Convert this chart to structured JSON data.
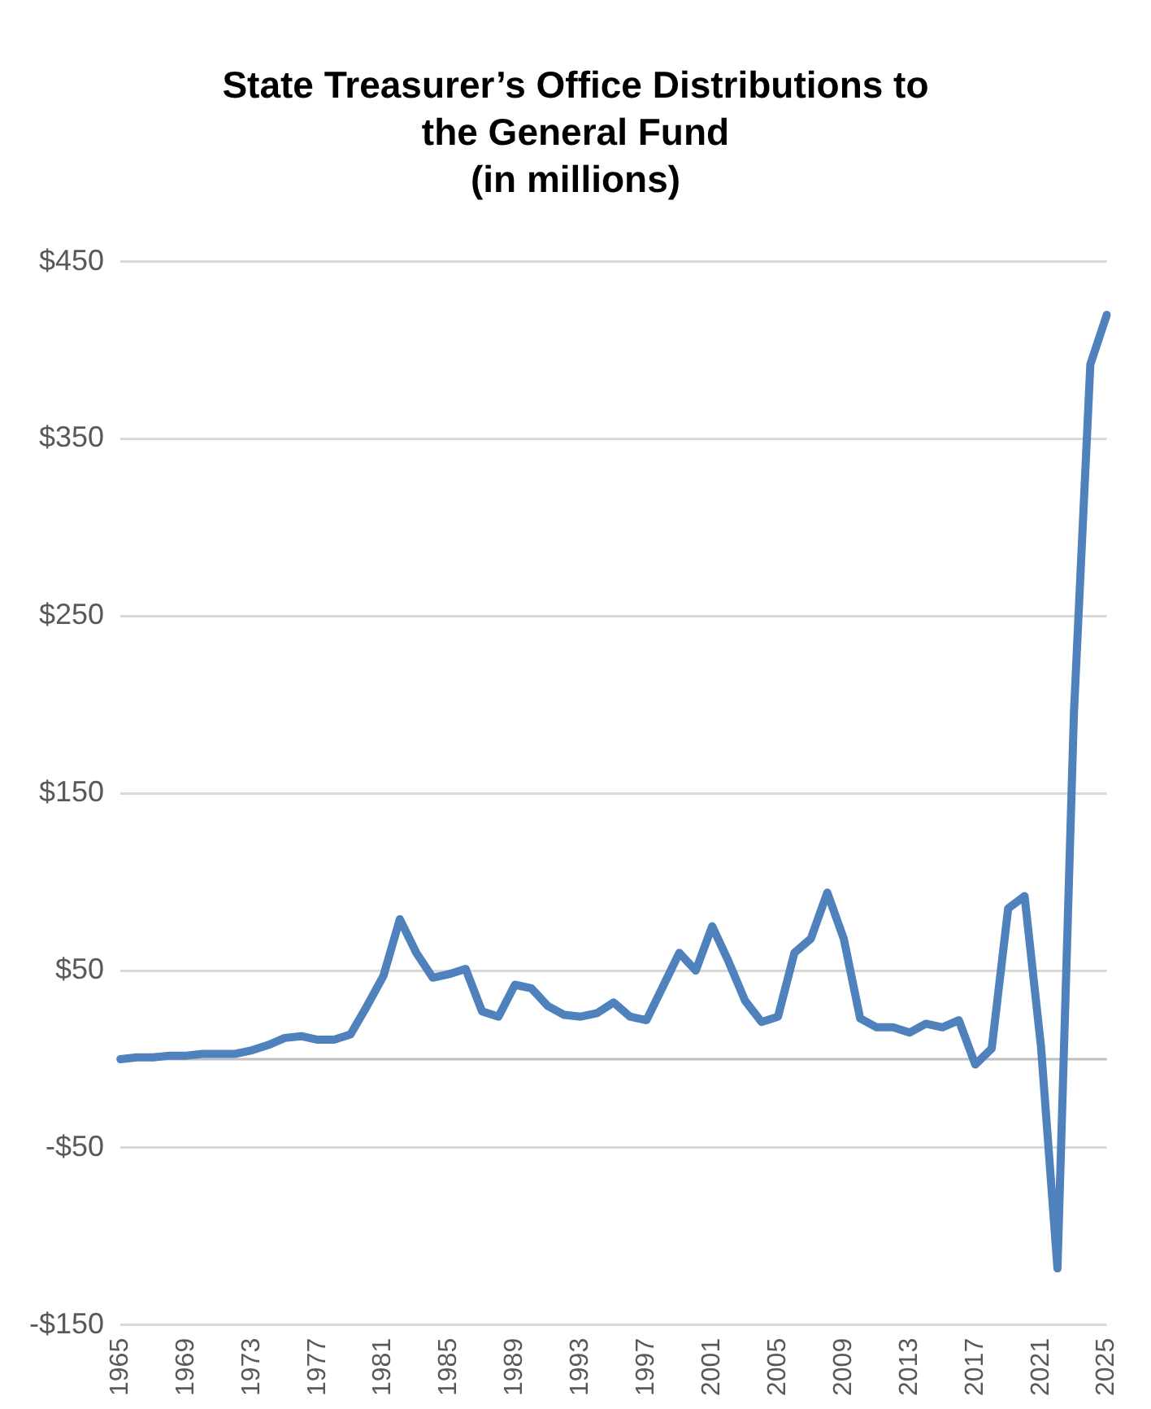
{
  "chart_data": {
    "type": "line",
    "title": "State Treasurer’s Office Distributions to\nthe General Fund\n(in millions)",
    "categories": [
      "1965",
      null,
      null,
      null,
      "1969",
      null,
      null,
      null,
      "1973",
      null,
      null,
      null,
      "1977",
      null,
      null,
      null,
      "1981",
      null,
      null,
      null,
      "1985",
      null,
      null,
      null,
      "1989",
      null,
      null,
      null,
      "1993",
      null,
      null,
      null,
      "1997",
      null,
      null,
      null,
      "2001",
      null,
      null,
      null,
      "2005",
      null,
      null,
      null,
      "2009",
      null,
      null,
      null,
      "2013",
      null,
      null,
      null,
      "2017",
      null,
      null,
      null,
      "2021",
      null,
      null,
      null,
      "2025"
    ],
    "series": [
      {
        "color": "#4f81bd",
        "values": [
          0,
          1,
          1,
          2,
          2,
          3,
          3,
          3,
          5,
          8,
          12,
          13,
          11,
          11,
          14,
          30,
          47,
          79,
          60,
          46,
          48,
          51,
          27,
          24,
          42,
          40,
          30,
          25,
          24,
          26,
          32,
          24,
          22,
          41,
          60,
          50,
          75,
          55,
          33,
          21,
          24,
          60,
          68,
          94,
          68,
          23,
          18,
          18,
          15,
          20,
          18,
          22,
          -3,
          6,
          85,
          92,
          7,
          -118,
          195,
          392,
          420
        ]
      }
    ],
    "ylim": [
      -150,
      450
    ],
    "yticks": [
      {
        "value": -150,
        "label": "-$150"
      },
      {
        "value": -50,
        "label": "-$50"
      },
      {
        "value": 50,
        "label": "$50"
      },
      {
        "value": 150,
        "label": "$150"
      },
      {
        "value": 250,
        "label": "$250"
      },
      {
        "value": 350,
        "label": "$350"
      },
      {
        "value": 450,
        "label": "$450"
      }
    ],
    "grid": "y",
    "ref_lines": [
      {
        "axis": "y",
        "value": 0,
        "color": "#bfbfbf"
      }
    ]
  }
}
